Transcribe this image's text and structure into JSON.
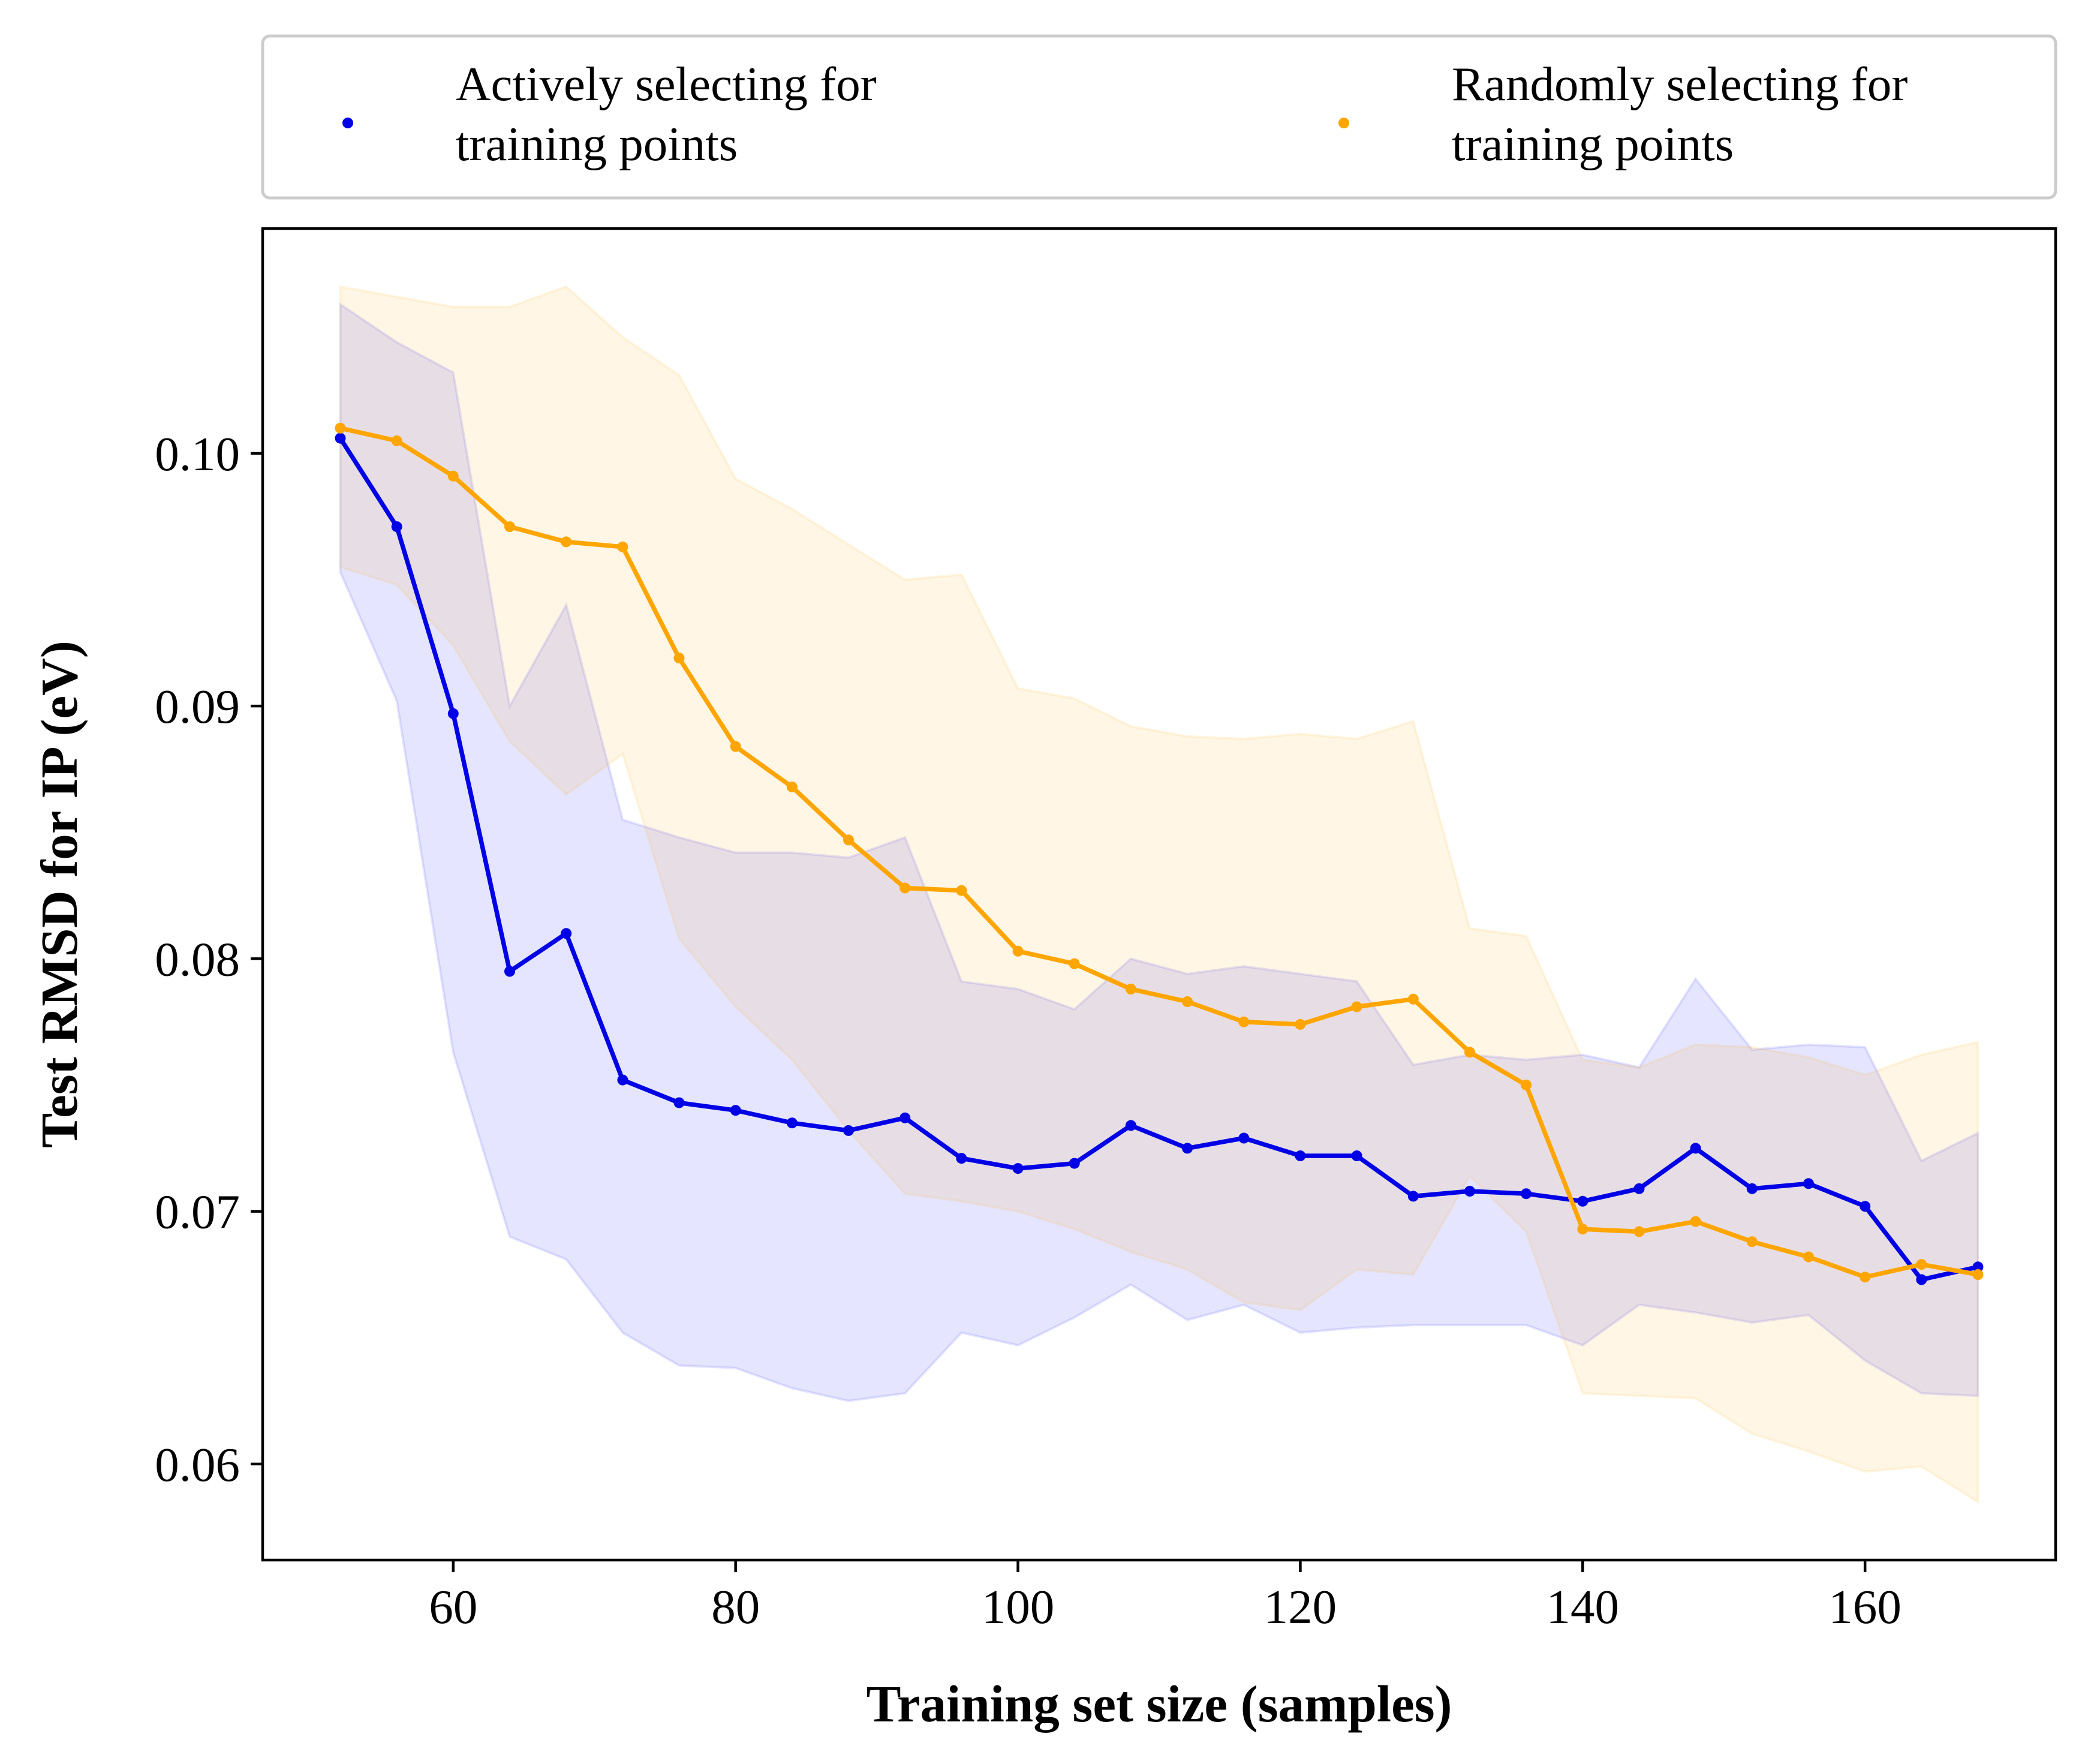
{
  "chart_data": {
    "type": "line",
    "title": "",
    "xlabel": "Training set size (samples)",
    "ylabel": "Test RMSD for IP (eV)",
    "xlim": [
      46.5,
      173.5
    ],
    "ylim": [
      0.0562,
      0.1089
    ],
    "xticks": [
      60,
      80,
      100,
      120,
      140,
      160
    ],
    "yticks": [
      0.06,
      0.07,
      0.08,
      0.09,
      0.1
    ],
    "xtick_labels": [
      "60",
      "80",
      "100",
      "120",
      "140",
      "160"
    ],
    "ytick_labels": [
      "0.06",
      "0.07",
      "0.08",
      "0.09",
      "0.10"
    ],
    "grid": false,
    "legend_position": "top, above plot, 2 columns",
    "x": [
      52,
      56,
      60,
      64,
      68,
      72,
      76,
      80,
      84,
      88,
      92,
      96,
      100,
      104,
      108,
      112,
      116,
      120,
      124,
      128,
      132,
      136,
      140,
      144,
      148,
      152,
      156,
      160,
      164,
      168
    ],
    "series": [
      {
        "name": "Actively selecting for\ntraining points",
        "legend_lines": [
          "Actively selecting for",
          "training points"
        ],
        "color": "#0000e6",
        "band_color": "#0000ff",
        "values": [
          0.1006,
          0.0971,
          0.0897,
          0.0795,
          0.081,
          0.0752,
          0.0743,
          0.074,
          0.0735,
          0.0732,
          0.0737,
          0.0721,
          0.0717,
          0.0719,
          0.0734,
          0.0725,
          0.0729,
          0.0722,
          0.0722,
          0.0706,
          0.0708,
          0.0707,
          0.0704,
          0.0709,
          0.0725,
          0.0709,
          0.0711,
          0.0702,
          0.0673,
          0.0678
        ],
        "upper": [
          0.1059,
          0.1044,
          0.1032,
          0.09,
          0.094,
          0.0855,
          0.0848,
          0.0842,
          0.0842,
          0.084,
          0.0848,
          0.0791,
          0.0788,
          0.078,
          0.08,
          0.0794,
          0.0797,
          0.0794,
          0.0791,
          0.0758,
          0.0762,
          0.076,
          0.0762,
          0.0757,
          0.0792,
          0.0764,
          0.0766,
          0.0765,
          0.072,
          0.0731
        ],
        "lower": [
          0.0953,
          0.0902,
          0.0763,
          0.069,
          0.0681,
          0.0652,
          0.0639,
          0.0638,
          0.063,
          0.0625,
          0.0628,
          0.0652,
          0.0647,
          0.0658,
          0.0671,
          0.0657,
          0.0663,
          0.0652,
          0.0654,
          0.0655,
          0.0655,
          0.0655,
          0.0647,
          0.0663,
          0.066,
          0.0656,
          0.0659,
          0.0641,
          0.0628,
          0.0627
        ]
      },
      {
        "name": "Randomly selecting for\ntraining points",
        "legend_lines": [
          "Randomly selecting for",
          "training points"
        ],
        "color": "#ffa500",
        "band_color": "#ffa500",
        "values": [
          0.101,
          0.1005,
          0.0991,
          0.0971,
          0.0965,
          0.0963,
          0.0919,
          0.0884,
          0.0868,
          0.0847,
          0.0828,
          0.0827,
          0.0803,
          0.0798,
          0.0788,
          0.0783,
          0.0775,
          0.0774,
          0.0781,
          0.0784,
          0.0763,
          0.075,
          0.0693,
          0.0692,
          0.0696,
          0.0688,
          0.0682,
          0.0674,
          0.0679,
          0.0675
        ],
        "upper": [
          0.1066,
          0.1062,
          0.1058,
          0.1058,
          0.1066,
          0.1046,
          0.1031,
          0.099,
          0.0978,
          0.0964,
          0.095,
          0.0952,
          0.0907,
          0.0903,
          0.0892,
          0.0888,
          0.0887,
          0.0889,
          0.0887,
          0.0894,
          0.0812,
          0.0809,
          0.076,
          0.0757,
          0.0766,
          0.0765,
          0.0761,
          0.0754,
          0.0762,
          0.0767
        ],
        "lower": [
          0.0955,
          0.0948,
          0.0924,
          0.0886,
          0.0865,
          0.0881,
          0.0808,
          0.0781,
          0.076,
          0.0732,
          0.0707,
          0.0704,
          0.07,
          0.0693,
          0.0684,
          0.0677,
          0.0664,
          0.0661,
          0.0677,
          0.0675,
          0.0714,
          0.0692,
          0.0628,
          0.0627,
          0.0626,
          0.0612,
          0.0605,
          0.0597,
          0.0599,
          0.0585
        ]
      }
    ]
  }
}
